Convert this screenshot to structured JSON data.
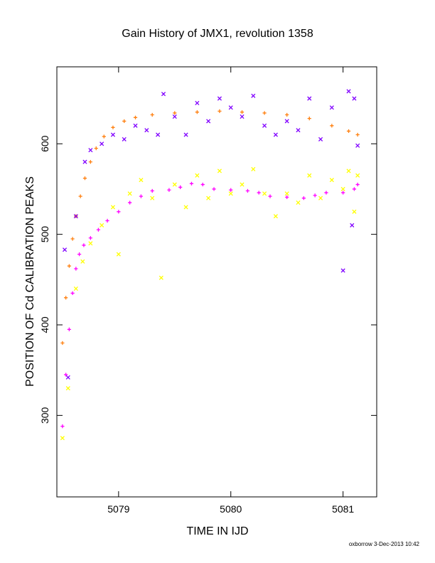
{
  "chart_data": {
    "type": "scatter",
    "title": "Gain History of JMX1, revolution 1358",
    "xlabel": "TIME IN IJD",
    "ylabel": "POSITION OF Cd CALIBRATION PEAKS",
    "xlim": [
      5078.45,
      5081.3
    ],
    "ylim": [
      210,
      685
    ],
    "x_ticks": [
      5079,
      5080,
      5081
    ],
    "y_ticks": [
      300,
      400,
      500,
      600
    ],
    "grid": false,
    "legend": "none",
    "series": [
      {
        "color": "#ff7f0e",
        "marker": "plus",
        "x": [
          5078.5,
          5078.53,
          5078.56,
          5078.59,
          5078.62,
          5078.66,
          5078.7,
          5078.75,
          5078.8,
          5078.87,
          5078.95,
          5079.05,
          5079.15,
          5079.3,
          5079.5,
          5079.7,
          5079.9,
          5080.1,
          5080.3,
          5080.5,
          5080.7,
          5080.9,
          5081.05,
          5081.13
        ],
        "y": [
          380,
          430,
          465,
          495,
          520,
          542,
          562,
          580,
          595,
          608,
          618,
          625,
          629,
          632,
          634,
          635,
          636,
          635,
          634,
          632,
          628,
          620,
          614,
          610
        ]
      },
      {
        "color": "#ff00ff",
        "marker": "plus",
        "x": [
          5078.5,
          5078.53,
          5078.56,
          5078.59,
          5078.62,
          5078.65,
          5078.69,
          5078.75,
          5078.82,
          5078.9,
          5079.0,
          5079.1,
          5079.2,
          5079.3,
          5079.45,
          5079.55,
          5079.65,
          5079.75,
          5079.85,
          5080.0,
          5080.15,
          5080.25,
          5080.35,
          5080.5,
          5080.65,
          5080.75,
          5080.85,
          5081.0,
          5081.1,
          5081.13
        ],
        "y": [
          288,
          345,
          395,
          435,
          462,
          478,
          488,
          496,
          505,
          515,
          525,
          535,
          542,
          548,
          549,
          552,
          556,
          555,
          550,
          549,
          548,
          546,
          542,
          541,
          540,
          543,
          546,
          546,
          550,
          555
        ]
      },
      {
        "color": "#8000ff",
        "marker": "cross",
        "x": [
          5078.52,
          5078.55,
          5078.62,
          5078.7,
          5078.75,
          5078.85,
          5078.95,
          5079.05,
          5079.15,
          5079.25,
          5079.35,
          5079.4,
          5079.5,
          5079.6,
          5079.7,
          5079.8,
          5079.9,
          5080.0,
          5080.1,
          5080.2,
          5080.3,
          5080.4,
          5080.5,
          5080.6,
          5080.7,
          5080.8,
          5080.9,
          5081.0,
          5081.05,
          5081.08,
          5081.1,
          5081.13
        ],
        "y": [
          483,
          342,
          520,
          580,
          593,
          600,
          610,
          605,
          620,
          615,
          610,
          655,
          630,
          610,
          645,
          625,
          650,
          640,
          630,
          653,
          620,
          610,
          625,
          615,
          650,
          605,
          640,
          460,
          658,
          510,
          650,
          598
        ]
      },
      {
        "color": "#ffff00",
        "marker": "cross",
        "x": [
          5078.5,
          5078.55,
          5078.62,
          5078.68,
          5078.75,
          5078.85,
          5078.95,
          5079.0,
          5079.1,
          5079.2,
          5079.3,
          5079.38,
          5079.5,
          5079.6,
          5079.7,
          5079.8,
          5079.9,
          5080.0,
          5080.1,
          5080.2,
          5080.3,
          5080.4,
          5080.5,
          5080.6,
          5080.7,
          5080.8,
          5080.9,
          5081.0,
          5081.05,
          5081.1,
          5081.13
        ],
        "y": [
          275,
          330,
          440,
          470,
          490,
          510,
          530,
          478,
          545,
          560,
          540,
          452,
          555,
          530,
          565,
          540,
          570,
          545,
          555,
          572,
          545,
          520,
          545,
          535,
          565,
          540,
          560,
          550,
          570,
          525,
          565
        ]
      }
    ]
  },
  "footer": "oxborrow 3-Dec-2013 10:42"
}
